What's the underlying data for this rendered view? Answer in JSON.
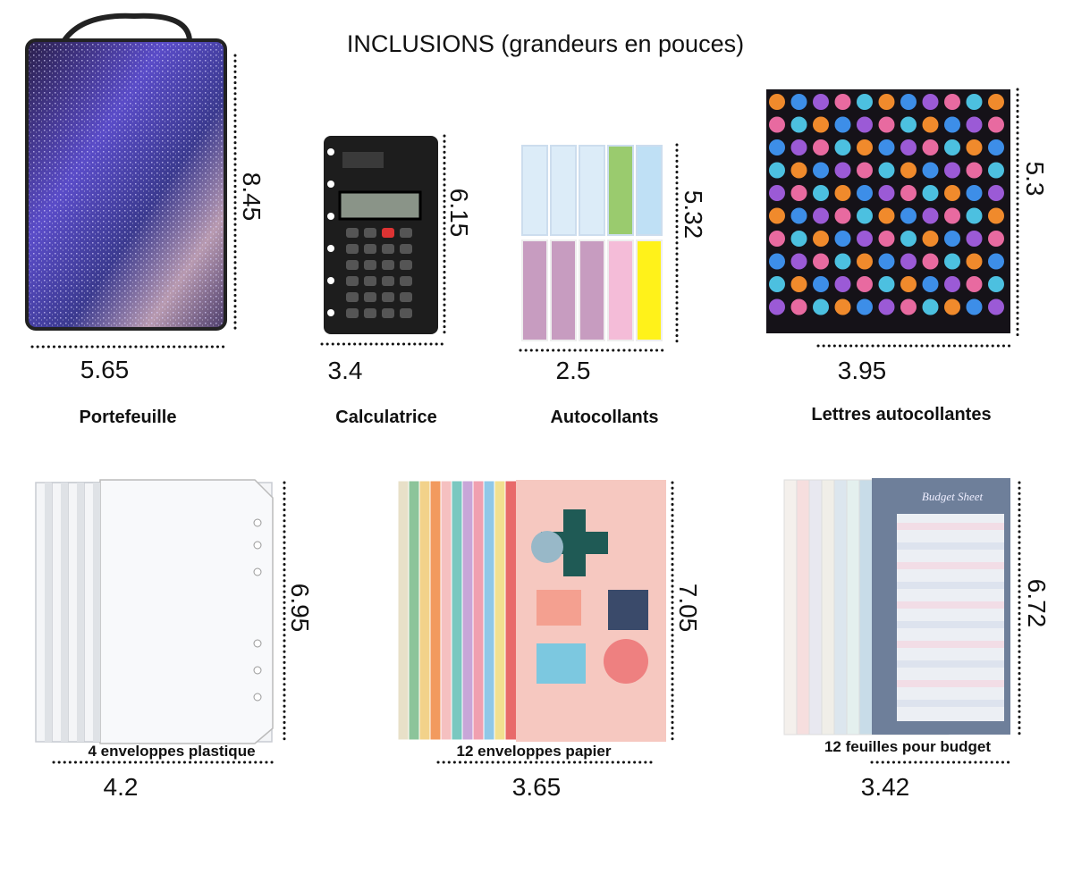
{
  "title": "INCLUSIONS (grandeurs en pouces)",
  "products": [
    {
      "name": "Portefeuille",
      "width": "5.65",
      "height": "8.45"
    },
    {
      "name": "Calculatrice",
      "width": "3.4",
      "height": "6.15"
    },
    {
      "name": "Autocollants",
      "width": "2.5",
      "height": "5.32"
    },
    {
      "name": "Lettres autocollantes",
      "width": "3.95",
      "height": "5.3"
    },
    {
      "name": "4 enveloppes plastique",
      "width": "4.2",
      "height": "6.95"
    },
    {
      "name": "12 enveloppes papier",
      "width": "3.65",
      "height": "7.05"
    },
    {
      "name": "12 feuilles pour budget",
      "width": "3.42",
      "height": "6.72",
      "sheet_title": "Budget Sheet"
    }
  ]
}
